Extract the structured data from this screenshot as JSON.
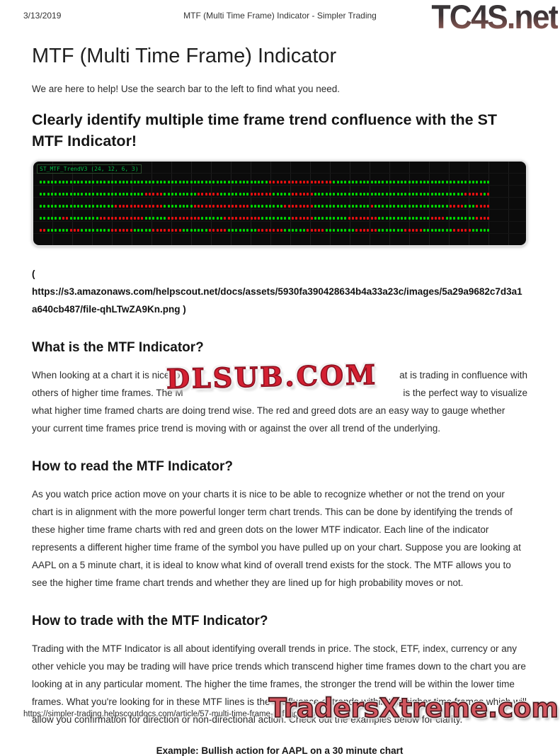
{
  "page": {
    "print_date": "3/13/2019",
    "print_title": "MTF (Multi Time Frame) Indicator - Simpler Trading",
    "print_url": "https://simpler-trading.helpscoutdocs.com/article/57-multi-time-frame-mtf-indicator"
  },
  "watermarks": {
    "top_right_logo": "TC4S.net",
    "middle_overlay": "DLSUB.COM",
    "bottom_right_logo": "TradersXtreme.com"
  },
  "article": {
    "title": "MTF (Multi Time Frame) Indicator",
    "intro": "We are here to help! Use the search bar to the left to find what you need.",
    "headline": "Clearly identify multiple time frame trend confluence with the ST MTF Indicator!",
    "image_link_lines": [
      "(",
      "https://s3.amazonaws.com/helpscout.net/docs/assets/5930fa390428634b4a33a23c/images/5a29a9682c7d3a1",
      "a640cb487/file-qhLTwZA9Kn.png )"
    ],
    "sections": [
      {
        "heading": "What is the MTF Indicator?",
        "obscured_lines": [
          {
            "left": "When looking at a chart it is nice to",
            "right": "at is trading in confluence with"
          },
          {
            "left": "others of higher time frames. The M",
            "right": "is the perfect way to visualize"
          }
        ],
        "visible_lines": [
          "what higher time framed charts are doing trend wise. The red and greed dots are an easy way to gauge whether",
          "your current time frames price trend is moving with or against the over all trend of the underlying."
        ]
      },
      {
        "heading": "How to read the MTF Indicator?",
        "text": "As you watch price action move on your charts it is nice to be able to recognize whether or not the trend on your chart is in alignment with the more powerful longer term chart trends. This can be done by identifying the trends of these higher time frame charts with red and green dots on the lower MTF indicator. Each line of the indicator represents a different higher time frame of the symbol you have pulled up on your chart. Suppose you are looking at AAPL on a 5 minute chart, it is ideal to know what kind of overall trend exists for the stock. The MTF allows you to see the higher time frame chart trends and whether they are lined up for high probability moves or not."
      },
      {
        "heading": "How to trade with the MTF Indicator?",
        "text": "Trading with the MTF Indicator is all about identifying overall trends in price. The stock, ETF, index, currency or any other vehicle you may be trading will have price trends which transcend higher time frames down to the chart you are looking at in any particular moment. The higher the time frames, the stronger the trend will be within the lower time frames. What you're looking for in these MTF lines is the confluence of trends within the higher time frames which will allow you confirmation for direction or non-directional action. Check out the examples below for clarity."
      }
    ],
    "example_caption": "Example: Bullish action for AAPL on a 30 minute chart"
  },
  "chart_data": {
    "type": "heatmap",
    "title": "ST_MTF_TrendV3 (24, 12, 6, 3)",
    "description": "MTF indicator panel: 5 horizontal rows of trend dots, one row per higher time frame; green = bullish trend, red = bearish trend",
    "dots_per_row": 120,
    "colors": {
      "green": "#00d800",
      "red": "#e81010",
      "background": "#0b0b0b",
      "grid": "#1d1d1d",
      "label": "#00bb44"
    },
    "layout": {
      "grid": "faint vertical gridlines on black panel",
      "legend": "none",
      "axes": "none visible"
    },
    "rows": [
      {
        "segments": [
          [
            "green",
            61
          ],
          [
            "red",
            17
          ],
          [
            "green",
            42
          ]
        ]
      },
      {
        "segments": [
          [
            "green",
            28
          ],
          [
            "red",
            5
          ],
          [
            "green",
            9
          ],
          [
            "red",
            6
          ],
          [
            "green",
            8
          ],
          [
            "red",
            6
          ],
          [
            "green",
            5
          ],
          [
            "red",
            6
          ],
          [
            "green",
            40
          ],
          [
            "red",
            5
          ],
          [
            "green",
            1
          ],
          [
            "red",
            1
          ]
        ]
      },
      {
        "segments": [
          [
            "green",
            20
          ],
          [
            "red",
            13
          ],
          [
            "green",
            8
          ],
          [
            "red",
            15
          ],
          [
            "green",
            9
          ],
          [
            "red",
            8
          ],
          [
            "green",
            15
          ],
          [
            "red",
            1
          ],
          [
            "green",
            20
          ],
          [
            "red",
            4
          ],
          [
            "green",
            3
          ],
          [
            "red",
            4
          ]
        ]
      },
      {
        "segments": [
          [
            "green",
            6
          ],
          [
            "red",
            2
          ],
          [
            "green",
            8
          ],
          [
            "red",
            12
          ],
          [
            "green",
            6
          ],
          [
            "red",
            9
          ],
          [
            "green",
            6
          ],
          [
            "red",
            10
          ],
          [
            "green",
            8
          ],
          [
            "red",
            6
          ],
          [
            "green",
            9
          ],
          [
            "red",
            8
          ],
          [
            "green",
            14
          ],
          [
            "red",
            4
          ],
          [
            "green",
            8
          ],
          [
            "red",
            4
          ]
        ]
      },
      {
        "segments": [
          [
            "red",
            2
          ],
          [
            "green",
            6
          ],
          [
            "red",
            3
          ],
          [
            "green",
            8
          ],
          [
            "red",
            6
          ],
          [
            "green",
            5
          ],
          [
            "red",
            8
          ],
          [
            "green",
            7
          ],
          [
            "red",
            5
          ],
          [
            "green",
            8
          ],
          [
            "red",
            7
          ],
          [
            "green",
            6
          ],
          [
            "red",
            5
          ],
          [
            "green",
            8
          ],
          [
            "red",
            6
          ],
          [
            "green",
            7
          ],
          [
            "red",
            5
          ],
          [
            "green",
            8
          ],
          [
            "red",
            5
          ],
          [
            "green",
            5
          ]
        ]
      }
    ]
  }
}
